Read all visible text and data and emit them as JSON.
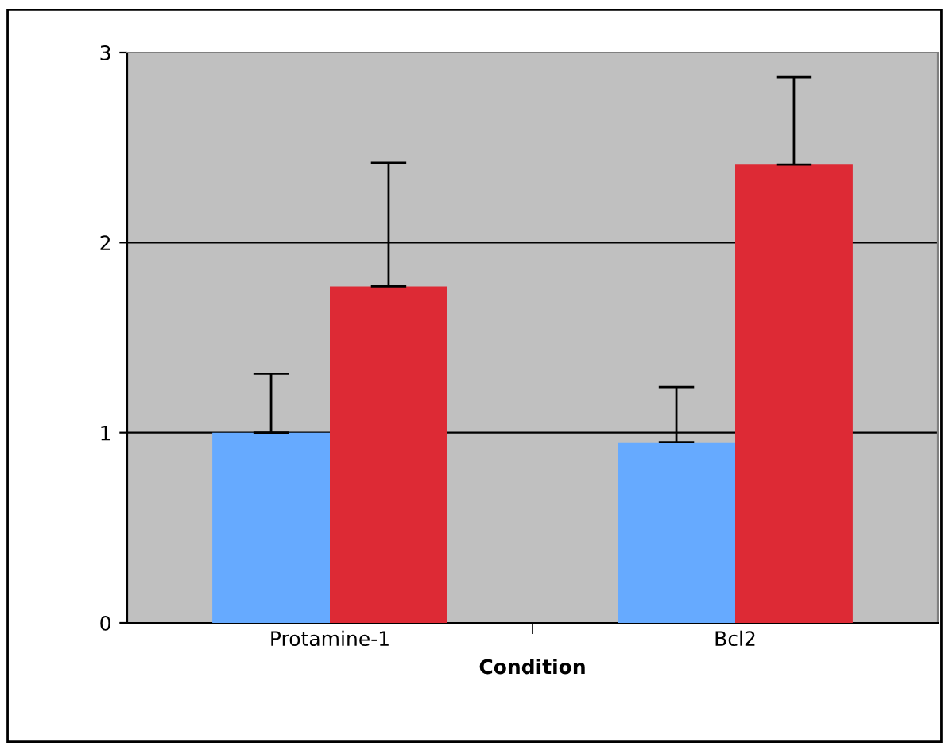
{
  "chart_data": {
    "type": "bar",
    "xlabel": "Condition",
    "categories": [
      "Protamine-1",
      "Bcl2"
    ],
    "series": [
      {
        "color": "#66aaff",
        "values": [
          1.0,
          0.95
        ],
        "errors": [
          [
            1.0,
            1.31
          ],
          [
            0.95,
            1.24
          ]
        ]
      },
      {
        "color": "#dd2a35",
        "values": [
          1.77,
          2.41
        ],
        "errors": [
          [
            1.77,
            2.42
          ],
          [
            2.41,
            2.87
          ]
        ]
      }
    ],
    "ylim": [
      0,
      3
    ],
    "yticks": [
      0,
      1,
      2,
      3
    ],
    "grid": "y"
  }
}
